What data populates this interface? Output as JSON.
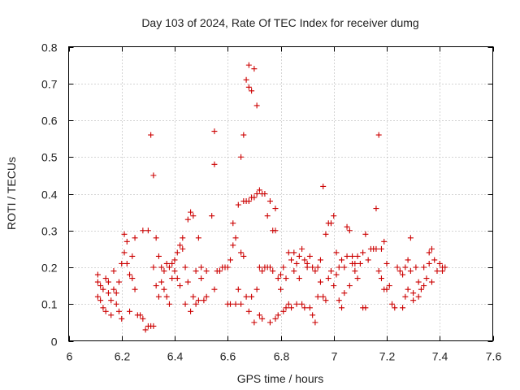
{
  "chart_data": {
    "type": "scatter",
    "title": "Day 103 of 2024, Rate Of TEC Index for receiver dumg",
    "xlabel": "GPS time / hours",
    "ylabel": "ROTI / TECUs",
    "xlim": [
      6,
      7.6
    ],
    "ylim": [
      0,
      0.8
    ],
    "x_ticks": [
      6,
      6.2,
      6.4,
      6.6,
      6.8,
      7,
      7.2,
      7.4,
      7.6
    ],
    "x_tick_labels": [
      "6",
      "6.2",
      "6.4",
      "6.6",
      "6.8",
      "7",
      "7.2",
      "7.4",
      "7.6"
    ],
    "y_ticks": [
      0,
      0.1,
      0.2,
      0.3,
      0.4,
      0.5,
      0.6,
      0.7,
      0.8
    ],
    "y_tick_labels": [
      "0",
      "0.1",
      "0.2",
      "0.3",
      "0.4",
      "0.5",
      "0.6",
      "0.7",
      "0.8"
    ],
    "grid": true,
    "marker": "plus",
    "color": "#cc0000",
    "series": [
      {
        "name": "ROTI",
        "points": [
          [
            6.11,
            0.18
          ],
          [
            6.11,
            0.16
          ],
          [
            6.11,
            0.12
          ],
          [
            6.12,
            0.11
          ],
          [
            6.12,
            0.15
          ],
          [
            6.13,
            0.09
          ],
          [
            6.13,
            0.14
          ],
          [
            6.14,
            0.17
          ],
          [
            6.14,
            0.08
          ],
          [
            6.15,
            0.13
          ],
          [
            6.15,
            0.16
          ],
          [
            6.16,
            0.11
          ],
          [
            6.16,
            0.07
          ],
          [
            6.17,
            0.14
          ],
          [
            6.17,
            0.19
          ],
          [
            6.18,
            0.1
          ],
          [
            6.18,
            0.13
          ],
          [
            6.19,
            0.08
          ],
          [
            6.19,
            0.16
          ],
          [
            6.2,
            0.06
          ],
          [
            6.2,
            0.21
          ],
          [
            6.21,
            0.24
          ],
          [
            6.21,
            0.29
          ],
          [
            6.22,
            0.27
          ],
          [
            6.22,
            0.21
          ],
          [
            6.23,
            0.18
          ],
          [
            6.23,
            0.08
          ],
          [
            6.24,
            0.23
          ],
          [
            6.24,
            0.17
          ],
          [
            6.25,
            0.28
          ],
          [
            6.25,
            0.14
          ],
          [
            6.26,
            0.07
          ],
          [
            6.27,
            0.07
          ],
          [
            6.28,
            0.06
          ],
          [
            6.28,
            0.3
          ],
          [
            6.29,
            0.03
          ],
          [
            6.3,
            0.3
          ],
          [
            6.3,
            0.04
          ],
          [
            6.31,
            0.56
          ],
          [
            6.31,
            0.04
          ],
          [
            6.32,
            0.45
          ],
          [
            6.32,
            0.2
          ],
          [
            6.32,
            0.04
          ],
          [
            6.33,
            0.28
          ],
          [
            6.33,
            0.15
          ],
          [
            6.34,
            0.12
          ],
          [
            6.34,
            0.23
          ],
          [
            6.35,
            0.16
          ],
          [
            6.35,
            0.2
          ],
          [
            6.36,
            0.19
          ],
          [
            6.36,
            0.14
          ],
          [
            6.37,
            0.12
          ],
          [
            6.37,
            0.21
          ],
          [
            6.38,
            0.2
          ],
          [
            6.38,
            0.1
          ],
          [
            6.39,
            0.17
          ],
          [
            6.39,
            0.21
          ],
          [
            6.4,
            0.22
          ],
          [
            6.4,
            0.19
          ],
          [
            6.41,
            0.24
          ],
          [
            6.41,
            0.17
          ],
          [
            6.42,
            0.26
          ],
          [
            6.42,
            0.15
          ],
          [
            6.43,
            0.28
          ],
          [
            6.43,
            0.25
          ],
          [
            6.44,
            0.2
          ],
          [
            6.44,
            0.1
          ],
          [
            6.45,
            0.33
          ],
          [
            6.45,
            0.16
          ],
          [
            6.46,
            0.35
          ],
          [
            6.46,
            0.08
          ],
          [
            6.47,
            0.34
          ],
          [
            6.47,
            0.12
          ],
          [
            6.48,
            0.1
          ],
          [
            6.48,
            0.19
          ],
          [
            6.49,
            0.11
          ],
          [
            6.49,
            0.28
          ],
          [
            6.5,
            0.17
          ],
          [
            6.5,
            0.2
          ],
          [
            6.51,
            0.11
          ],
          [
            6.52,
            0.19
          ],
          [
            6.52,
            0.12
          ],
          [
            6.54,
            0.34
          ],
          [
            6.55,
            0.48
          ],
          [
            6.55,
            0.57
          ],
          [
            6.55,
            0.14
          ],
          [
            6.56,
            0.19
          ],
          [
            6.57,
            0.19
          ],
          [
            6.58,
            0.2
          ],
          [
            6.59,
            0.2
          ],
          [
            6.6,
            0.2
          ],
          [
            6.6,
            0.1
          ],
          [
            6.61,
            0.22
          ],
          [
            6.61,
            0.1
          ],
          [
            6.62,
            0.26
          ],
          [
            6.62,
            0.32
          ],
          [
            6.63,
            0.28
          ],
          [
            6.63,
            0.1
          ],
          [
            6.64,
            0.37
          ],
          [
            6.64,
            0.14
          ],
          [
            6.65,
            0.5
          ],
          [
            6.65,
            0.24
          ],
          [
            6.65,
            0.1
          ],
          [
            6.66,
            0.56
          ],
          [
            6.66,
            0.38
          ],
          [
            6.66,
            0.23
          ],
          [
            6.67,
            0.71
          ],
          [
            6.67,
            0.38
          ],
          [
            6.67,
            0.12
          ],
          [
            6.68,
            0.75
          ],
          [
            6.68,
            0.69
          ],
          [
            6.68,
            0.38
          ],
          [
            6.68,
            0.08
          ],
          [
            6.69,
            0.68
          ],
          [
            6.69,
            0.39
          ],
          [
            6.69,
            0.12
          ],
          [
            6.7,
            0.74
          ],
          [
            6.7,
            0.39
          ],
          [
            6.7,
            0.05
          ],
          [
            6.71,
            0.64
          ],
          [
            6.71,
            0.4
          ],
          [
            6.71,
            0.14
          ],
          [
            6.72,
            0.41
          ],
          [
            6.72,
            0.2
          ],
          [
            6.72,
            0.07
          ],
          [
            6.73,
            0.4
          ],
          [
            6.73,
            0.19
          ],
          [
            6.73,
            0.06
          ],
          [
            6.74,
            0.4
          ],
          [
            6.74,
            0.2
          ],
          [
            6.75,
            0.34
          ],
          [
            6.75,
            0.2
          ],
          [
            6.76,
            0.38
          ],
          [
            6.76,
            0.2
          ],
          [
            6.76,
            0.05
          ],
          [
            6.77,
            0.3
          ],
          [
            6.77,
            0.19
          ],
          [
            6.78,
            0.36
          ],
          [
            6.78,
            0.3
          ],
          [
            6.78,
            0.06
          ],
          [
            6.79,
            0.17
          ],
          [
            6.79,
            0.07
          ],
          [
            6.8,
            0.18
          ],
          [
            6.8,
            0.14
          ],
          [
            6.81,
            0.2
          ],
          [
            6.81,
            0.08
          ],
          [
            6.82,
            0.17
          ],
          [
            6.82,
            0.09
          ],
          [
            6.83,
            0.24
          ],
          [
            6.83,
            0.1
          ],
          [
            6.84,
            0.22
          ],
          [
            6.84,
            0.09
          ],
          [
            6.85,
            0.24
          ],
          [
            6.85,
            0.19
          ],
          [
            6.86,
            0.21
          ],
          [
            6.86,
            0.1
          ],
          [
            6.87,
            0.23
          ],
          [
            6.87,
            0.17
          ],
          [
            6.88,
            0.25
          ],
          [
            6.88,
            0.1
          ],
          [
            6.89,
            0.22
          ],
          [
            6.89,
            0.09
          ],
          [
            6.9,
            0.21
          ],
          [
            6.9,
            0.2
          ],
          [
            6.91,
            0.23
          ],
          [
            6.91,
            0.09
          ],
          [
            6.92,
            0.2
          ],
          [
            6.92,
            0.07
          ],
          [
            6.93,
            0.19
          ],
          [
            6.93,
            0.05
          ],
          [
            6.94,
            0.2
          ],
          [
            6.94,
            0.12
          ],
          [
            6.95,
            0.16
          ],
          [
            6.95,
            0.22
          ],
          [
            6.96,
            0.42
          ],
          [
            6.96,
            0.12
          ],
          [
            6.97,
            0.29
          ],
          [
            6.97,
            0.11
          ],
          [
            6.98,
            0.32
          ],
          [
            6.98,
            0.17
          ],
          [
            6.99,
            0.32
          ],
          [
            6.99,
            0.19
          ],
          [
            7.0,
            0.34
          ],
          [
            7.0,
            0.15
          ],
          [
            7.01,
            0.24
          ],
          [
            7.01,
            0.18
          ],
          [
            7.02,
            0.2
          ],
          [
            7.02,
            0.11
          ],
          [
            7.03,
            0.22
          ],
          [
            7.03,
            0.09
          ],
          [
            7.04,
            0.2
          ],
          [
            7.04,
            0.13
          ],
          [
            7.05,
            0.31
          ],
          [
            7.05,
            0.23
          ],
          [
            7.06,
            0.3
          ],
          [
            7.06,
            0.15
          ],
          [
            7.07,
            0.21
          ],
          [
            7.07,
            0.23
          ],
          [
            7.08,
            0.21
          ],
          [
            7.08,
            0.19
          ],
          [
            7.09,
            0.23
          ],
          [
            7.09,
            0.17
          ],
          [
            7.1,
            0.21
          ],
          [
            7.11,
            0.24
          ],
          [
            7.11,
            0.09
          ],
          [
            7.12,
            0.29
          ],
          [
            7.12,
            0.09
          ],
          [
            7.13,
            0.22
          ],
          [
            7.14,
            0.25
          ],
          [
            7.15,
            0.25
          ],
          [
            7.16,
            0.36
          ],
          [
            7.16,
            0.25
          ],
          [
            7.17,
            0.56
          ],
          [
            7.17,
            0.19
          ],
          [
            7.18,
            0.25
          ],
          [
            7.18,
            0.17
          ],
          [
            7.19,
            0.27
          ],
          [
            7.19,
            0.14
          ],
          [
            7.2,
            0.21
          ],
          [
            7.2,
            0.14
          ],
          [
            7.21,
            0.15
          ],
          [
            7.22,
            0.1
          ],
          [
            7.23,
            0.09
          ],
          [
            7.24,
            0.2
          ],
          [
            7.25,
            0.19
          ],
          [
            7.26,
            0.18
          ],
          [
            7.26,
            0.09
          ],
          [
            7.27,
            0.2
          ],
          [
            7.27,
            0.12
          ],
          [
            7.28,
            0.22
          ],
          [
            7.28,
            0.14
          ],
          [
            7.29,
            0.28
          ],
          [
            7.29,
            0.19
          ],
          [
            7.3,
            0.13
          ],
          [
            7.3,
            0.11
          ],
          [
            7.31,
            0.2
          ],
          [
            7.32,
            0.16
          ],
          [
            7.32,
            0.12
          ],
          [
            7.33,
            0.14
          ],
          [
            7.34,
            0.2
          ],
          [
            7.34,
            0.15
          ],
          [
            7.35,
            0.17
          ],
          [
            7.36,
            0.24
          ],
          [
            7.36,
            0.21
          ],
          [
            7.37,
            0.25
          ],
          [
            7.37,
            0.16
          ],
          [
            7.38,
            0.22
          ],
          [
            7.39,
            0.19
          ],
          [
            7.4,
            0.21
          ],
          [
            7.41,
            0.2
          ],
          [
            7.41,
            0.19
          ],
          [
            7.42,
            0.2
          ]
        ]
      }
    ]
  }
}
